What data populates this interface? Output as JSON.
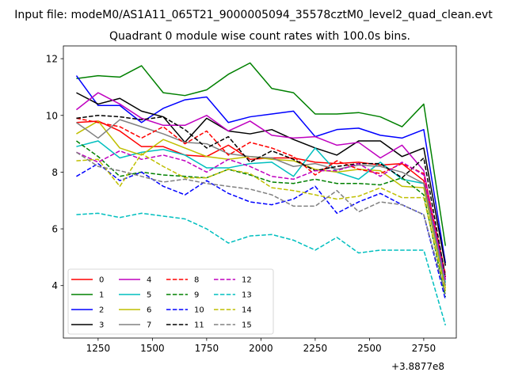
{
  "figure": {
    "suptitle": "Input file: modeM0/AS1A11_065T21_9000005094_35578cztM0_level2_quad_clean.evt"
  },
  "chart_data": {
    "type": "line",
    "title": "Quadrant 0 module wise count rates with 100.0s bins.",
    "xlabel": "",
    "ylabel": "",
    "x_offset_label": "+3.8877e8",
    "xlim": [
      1090,
      2900
    ],
    "ylim": [
      2.15,
      12.45
    ],
    "x_ticks": [
      1250,
      1500,
      1750,
      2000,
      2250,
      2500,
      2750
    ],
    "y_ticks": [
      4,
      6,
      8,
      10,
      12
    ],
    "grid": false,
    "legend_position": "lower-left",
    "legend_columns": 4,
    "x": [
      1150,
      1250,
      1350,
      1450,
      1550,
      1650,
      1750,
      1850,
      1950,
      2050,
      2150,
      2250,
      2350,
      2450,
      2550,
      2650,
      2750,
      2850
    ],
    "series": [
      {
        "name": "0",
        "color": "#ff0000",
        "dash": "solid",
        "values": [
          9.75,
          9.8,
          9.45,
          8.9,
          8.9,
          8.6,
          8.55,
          8.95,
          8.45,
          8.5,
          8.5,
          8.35,
          8.3,
          8.35,
          8.25,
          8.3,
          7.7,
          4.3
        ]
      },
      {
        "name": "1",
        "color": "#008000",
        "dash": "solid",
        "values": [
          11.3,
          11.4,
          11.35,
          11.75,
          10.8,
          10.7,
          10.9,
          11.45,
          11.85,
          10.95,
          10.8,
          10.05,
          10.05,
          10.1,
          9.95,
          9.6,
          10.4,
          5.4
        ]
      },
      {
        "name": "2",
        "color": "#0000ff",
        "dash": "solid",
        "values": [
          11.4,
          10.35,
          10.35,
          9.75,
          10.25,
          10.55,
          10.65,
          9.75,
          9.95,
          10.05,
          10.15,
          9.25,
          9.5,
          9.55,
          9.3,
          9.2,
          9.5,
          4.8
        ]
      },
      {
        "name": "3",
        "color": "#000000",
        "dash": "solid",
        "values": [
          10.8,
          10.4,
          10.6,
          10.15,
          9.95,
          9.05,
          9.9,
          9.45,
          9.35,
          9.5,
          9.15,
          8.85,
          8.6,
          9.1,
          9.1,
          8.55,
          8.85,
          4.7
        ]
      },
      {
        "name": "4",
        "color": "#bf00bf",
        "dash": "solid",
        "values": [
          10.2,
          10.8,
          10.4,
          9.9,
          9.65,
          9.65,
          10.0,
          9.45,
          9.8,
          9.3,
          9.2,
          9.25,
          8.95,
          9.05,
          8.5,
          8.95,
          8.05,
          4.2
        ]
      },
      {
        "name": "5",
        "color": "#00bfbf",
        "dash": "solid",
        "values": [
          8.9,
          9.1,
          8.5,
          8.7,
          8.8,
          8.6,
          8.15,
          8.15,
          8.3,
          8.35,
          7.85,
          8.85,
          8.0,
          7.75,
          8.35,
          7.75,
          7.6,
          4.1
        ]
      },
      {
        "name": "6",
        "color": "#bfbf00",
        "dash": "solid",
        "values": [
          9.35,
          9.8,
          8.85,
          8.6,
          9.15,
          8.85,
          8.55,
          8.45,
          8.55,
          8.45,
          8.4,
          8.1,
          8.0,
          8.1,
          8.05,
          7.5,
          7.45,
          3.9
        ]
      },
      {
        "name": "7",
        "color": "#808080",
        "dash": "solid",
        "values": [
          9.75,
          9.2,
          9.85,
          9.6,
          9.35,
          9.05,
          9.0,
          8.65,
          8.55,
          8.5,
          8.2,
          8.3,
          8.1,
          8.25,
          8.2,
          8.0,
          7.6,
          4.0
        ]
      },
      {
        "name": "8",
        "color": "#ff0000",
        "dash": "dashed",
        "values": [
          9.9,
          9.75,
          9.6,
          9.2,
          9.6,
          9.0,
          9.45,
          8.6,
          9.05,
          8.85,
          8.55,
          7.9,
          8.4,
          8.1,
          7.95,
          8.3,
          7.95,
          4.4
        ]
      },
      {
        "name": "9",
        "color": "#008000",
        "dash": "dashed",
        "values": [
          9.1,
          8.55,
          7.85,
          8.0,
          7.9,
          7.85,
          7.8,
          8.1,
          7.9,
          7.65,
          7.6,
          7.75,
          7.6,
          7.6,
          7.55,
          7.8,
          7.2,
          3.6
        ]
      },
      {
        "name": "10",
        "color": "#0000ff",
        "dash": "dashed",
        "values": [
          7.85,
          8.3,
          7.7,
          8.0,
          7.5,
          7.2,
          7.7,
          7.25,
          6.95,
          6.85,
          7.05,
          7.5,
          6.55,
          6.95,
          7.25,
          6.85,
          6.5,
          3.5
        ]
      },
      {
        "name": "11",
        "color": "#000000",
        "dash": "dashed",
        "values": [
          9.9,
          10.0,
          9.95,
          9.85,
          9.95,
          9.5,
          8.85,
          9.25,
          8.35,
          8.75,
          8.45,
          8.05,
          8.2,
          8.3,
          8.3,
          7.8,
          8.5,
          4.3
        ]
      },
      {
        "name": "12",
        "color": "#bf00bf",
        "dash": "dashed",
        "values": [
          8.7,
          8.35,
          8.75,
          8.45,
          8.6,
          8.4,
          8.0,
          8.45,
          8.2,
          7.85,
          7.75,
          8.05,
          8.05,
          8.3,
          7.85,
          8.35,
          7.9,
          4.2
        ]
      },
      {
        "name": "13",
        "color": "#00bfbf",
        "dash": "dashed",
        "values": [
          6.5,
          6.55,
          6.4,
          6.55,
          6.45,
          6.35,
          6.0,
          5.5,
          5.75,
          5.8,
          5.6,
          5.25,
          5.7,
          5.15,
          5.25,
          5.25,
          5.25,
          2.6
        ]
      },
      {
        "name": "14",
        "color": "#bfbf00",
        "dash": "dashed",
        "values": [
          8.4,
          8.45,
          7.5,
          8.65,
          8.2,
          7.8,
          7.8,
          8.1,
          7.95,
          7.45,
          7.35,
          7.2,
          7.05,
          7.15,
          7.45,
          7.1,
          7.1,
          3.8
        ]
      },
      {
        "name": "15",
        "color": "#808080",
        "dash": "dashed",
        "values": [
          8.7,
          8.2,
          8.05,
          7.85,
          7.65,
          7.75,
          7.6,
          7.5,
          7.4,
          7.2,
          6.8,
          6.8,
          7.35,
          6.6,
          6.95,
          6.85,
          6.5,
          3.7
        ]
      }
    ]
  }
}
